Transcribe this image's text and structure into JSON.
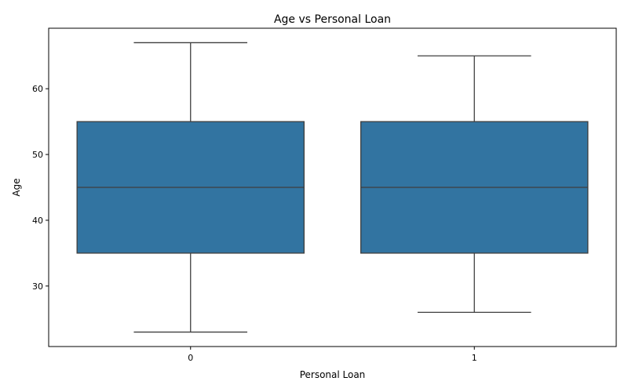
{
  "chart_data": {
    "type": "box",
    "title": "Age vs Personal Loan",
    "xlabel": "Personal Loan",
    "ylabel": "Age",
    "categories": [
      "0",
      "1"
    ],
    "boxes": [
      {
        "category": "0",
        "whisker_low": 23,
        "q1": 35,
        "median": 45,
        "q3": 55,
        "whisker_high": 67
      },
      {
        "category": "1",
        "whisker_low": 26,
        "q1": 35,
        "median": 45,
        "q3": 55,
        "whisker_high": 65
      }
    ],
    "yticks": [
      30,
      40,
      50,
      60
    ],
    "ylim": [
      20.8,
      69.2
    ],
    "grid": false,
    "colors": {
      "box_fill": "#3274a1",
      "line": "#3f3f3f",
      "axis": "#000000"
    }
  }
}
